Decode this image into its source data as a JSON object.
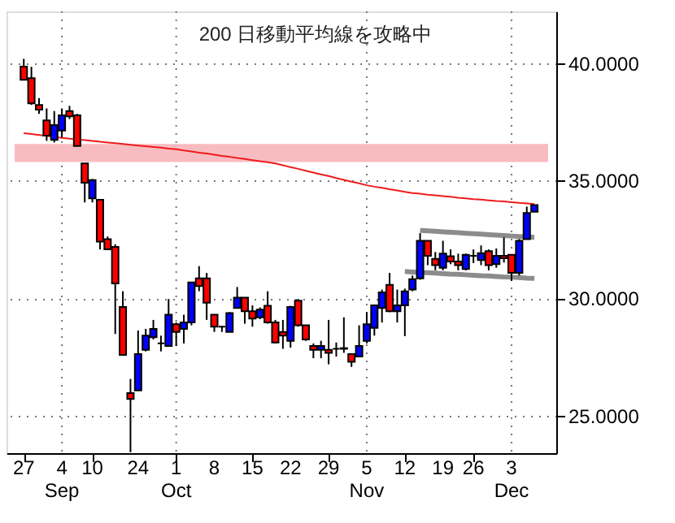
{
  "chart_data": {
    "type": "candlestick",
    "annotations": [
      "200 日移動平均線を攻略中"
    ],
    "categories": [
      "27",
      null,
      null,
      null,
      null,
      "4\nSep",
      null,
      null,
      null,
      "10",
      null,
      null,
      null,
      null,
      null,
      "24",
      null,
      null,
      null,
      null,
      "1\nOct",
      null,
      null,
      null,
      null,
      "8",
      null,
      null,
      null,
      null,
      "15",
      null,
      null,
      null,
      null,
      "22",
      null,
      null,
      null,
      null,
      "29",
      null,
      null,
      null,
      null,
      "5\nNov",
      null,
      null,
      null,
      null,
      "12",
      null,
      null,
      null,
      null,
      "19",
      null,
      null,
      null,
      "26",
      null,
      null,
      null,
      null,
      "3\nDec",
      null,
      null,
      null
    ],
    "ohlc": [
      [
        39.85,
        40.18,
        39.29,
        39.29
      ],
      [
        39.36,
        39.84,
        38.22,
        38.29
      ],
      [
        38.22,
        38.51,
        37.84,
        38.02
      ],
      [
        37.56,
        38.07,
        36.69,
        36.91
      ],
      [
        36.73,
        37.96,
        36.62,
        37.36
      ],
      [
        37.13,
        38.07,
        36.84,
        37.78
      ],
      [
        37.96,
        38.18,
        37.62,
        37.73
      ],
      [
        37.78,
        37.84,
        36.47,
        36.47
      ],
      [
        35.73,
        35.73,
        34.07,
        34.91
      ],
      [
        34.24,
        35.07,
        34.07,
        35.02
      ],
      [
        34.18,
        34.18,
        32.07,
        32.4
      ],
      [
        32.51,
        32.62,
        32.07,
        32.07
      ],
      [
        32.18,
        32.29,
        28.47,
        30.62
      ],
      [
        29.62,
        30.29,
        27.58,
        27.58
      ],
      [
        25.96,
        26.56,
        23.44,
        25.71
      ],
      [
        26.07,
        28.62,
        26.07,
        27.62
      ],
      [
        27.8,
        28.69,
        27.73,
        28.4
      ],
      [
        28.33,
        29.07,
        28.24,
        28.69
      ],
      [
        28.07,
        28.4,
        27.73,
        28.07
      ],
      [
        27.96,
        29.96,
        27.96,
        29.29
      ],
      [
        28.89,
        28.96,
        27.96,
        28.56
      ],
      [
        28.69,
        29.29,
        28.07,
        28.96
      ],
      [
        28.96,
        30.67,
        28.84,
        30.67
      ],
      [
        30.84,
        31.36,
        30.29,
        30.51
      ],
      [
        30.84,
        31.07,
        29.07,
        29.8
      ],
      [
        29.29,
        29.29,
        28.56,
        28.78
      ],
      [
        28.78,
        28.78,
        28.56,
        28.78
      ],
      [
        28.56,
        29.4,
        28.56,
        29.36
      ],
      [
        29.58,
        30.47,
        29.58,
        30.02
      ],
      [
        30.02,
        30.02,
        28.91,
        29.44
      ],
      [
        29.44,
        29.69,
        28.78,
        29.13
      ],
      [
        29.18,
        29.6,
        29.1,
        29.51
      ],
      [
        29.67,
        30.29,
        28.91,
        28.96
      ],
      [
        28.96,
        29.07,
        28.07,
        28.11
      ],
      [
        28.56,
        29.07,
        27.84,
        28.4
      ],
      [
        28.18,
        29.67,
        27.89,
        29.62
      ],
      [
        29.89,
        29.96,
        28.78,
        28.84
      ],
      [
        28.84,
        28.84,
        28.18,
        28.24
      ],
      [
        27.96,
        28.07,
        27.44,
        27.8
      ],
      [
        27.8,
        28.18,
        27.44,
        27.96
      ],
      [
        27.8,
        29.07,
        27.18,
        27.67
      ],
      [
        27.84,
        28.11,
        27.51,
        27.84
      ],
      [
        27.84,
        29.18,
        27.67,
        27.87
      ],
      [
        27.62,
        27.62,
        27.07,
        27.29
      ],
      [
        27.51,
        28.84,
        27.51,
        27.96
      ],
      [
        28.18,
        29.4,
        28.07,
        28.89
      ],
      [
        28.73,
        29.73,
        28.4,
        29.69
      ],
      [
        29.58,
        30.36,
        28.96,
        30.24
      ],
      [
        30.56,
        31.07,
        29.4,
        29.44
      ],
      [
        29.44,
        30.36,
        28.96,
        29.69
      ],
      [
        29.69,
        30.4,
        28.38,
        30.29
      ],
      [
        30.36,
        30.96,
        30.29,
        30.8
      ],
      [
        30.84,
        32.76,
        30.78,
        32.44
      ],
      [
        32.44,
        32.44,
        31.4,
        31.8
      ],
      [
        31.67,
        31.96,
        31.18,
        31.4
      ],
      [
        31.29,
        32.44,
        31.18,
        31.89
      ],
      [
        31.78,
        32.07,
        31.44,
        31.56
      ],
      [
        31.56,
        31.89,
        31.18,
        31.4
      ],
      [
        31.24,
        31.89,
        31.18,
        31.84
      ],
      [
        31.8,
        32.07,
        31.49,
        31.8
      ],
      [
        31.62,
        32.24,
        31.4,
        31.91
      ],
      [
        32.0,
        32.07,
        31.18,
        31.4
      ],
      [
        31.44,
        32.11,
        31.29,
        31.8
      ],
      [
        31.8,
        32.58,
        31.51,
        31.69
      ],
      [
        31.84,
        31.84,
        30.73,
        31.07
      ],
      [
        31.07,
        32.51,
        30.96,
        32.44
      ],
      [
        32.51,
        33.89,
        32.51,
        33.62
      ],
      [
        33.67,
        33.96,
        33.67,
        33.96
      ]
    ],
    "colors": [
      "#ff0000",
      "#ff0000",
      "#ff0000",
      "#ff0000",
      "#0000ff",
      "#0000ff",
      "#ff0000",
      "#ff0000",
      "#ff0000",
      "#0000ff",
      "#ff0000",
      "#ff0000",
      "#ff0000",
      "#ff0000",
      "#ff0000",
      "#0000ff",
      "#0000ff",
      "#0000ff",
      "#000000",
      "#0000ff",
      "#ff0000",
      "#0000ff",
      "#0000ff",
      "#ff0000",
      "#ff0000",
      "#ff0000",
      "#000000",
      "#0000ff",
      "#0000ff",
      "#ff0000",
      "#ff0000",
      "#0000ff",
      "#ff0000",
      "#ff0000",
      "#ff0000",
      "#0000ff",
      "#ff0000",
      "#ff0000",
      "#ff0000",
      "#0000ff",
      "#ff0000",
      "#000000",
      "#0000ff",
      "#ff0000",
      "#0000ff",
      "#0000ff",
      "#0000ff",
      "#0000ff",
      "#ff0000",
      "#0000ff",
      "#0000ff",
      "#0000ff",
      "#0000ff",
      "#ff0000",
      "#ff0000",
      "#0000ff",
      "#ff0000",
      "#ff0000",
      "#0000ff",
      "#000000",
      "#0000ff",
      "#ff0000",
      "#0000ff",
      "#ff0000",
      "#ff0000",
      "#0000ff",
      "#0000ff",
      "#0000ff"
    ],
    "series": [
      {
        "type": "line",
        "color": "#ee1c1c",
        "values": [
          37.02,
          36.98,
          36.94,
          36.9,
          36.86,
          36.82,
          36.78,
          36.75,
          36.72,
          36.69,
          36.65,
          36.62,
          36.59,
          36.56,
          36.52,
          36.49,
          36.46,
          36.43,
          36.4,
          36.36,
          36.33,
          36.28,
          36.24,
          36.19,
          36.15,
          36.1,
          36.05,
          36.01,
          35.96,
          35.92,
          35.87,
          35.82,
          35.78,
          35.73,
          35.65,
          35.57,
          35.5,
          35.42,
          35.34,
          35.26,
          35.19,
          35.11,
          35.03,
          34.95,
          34.88,
          34.8,
          34.74,
          34.69,
          34.63,
          34.58,
          34.52,
          34.47,
          34.44,
          34.4,
          34.37,
          34.34,
          34.31,
          34.27,
          34.24,
          34.21,
          34.19,
          34.16,
          34.13,
          34.11,
          34.08,
          34.05,
          34.03,
          34.0
        ]
      },
      {
        "type": "line",
        "color": "#8c8c8c",
        "values": [
          null,
          null,
          null,
          null,
          null,
          null,
          null,
          null,
          null,
          null,
          null,
          null,
          null,
          null,
          null,
          null,
          null,
          null,
          null,
          null,
          null,
          null,
          null,
          null,
          null,
          null,
          null,
          null,
          null,
          null,
          null,
          null,
          null,
          null,
          null,
          null,
          null,
          null,
          null,
          null,
          null,
          null,
          null,
          null,
          null,
          null,
          null,
          null,
          null,
          null,
          null,
          null,
          32.88,
          32.86,
          32.84,
          32.82,
          32.8,
          32.78,
          32.76,
          32.74,
          32.72,
          32.7,
          32.68,
          32.66,
          32.64,
          32.62,
          32.6,
          32.58
        ]
      },
      {
        "type": "line",
        "color": "#8c8c8c",
        "values": [
          null,
          null,
          null,
          null,
          null,
          null,
          null,
          null,
          null,
          null,
          null,
          null,
          null,
          null,
          null,
          null,
          null,
          null,
          null,
          null,
          null,
          null,
          null,
          null,
          null,
          null,
          null,
          null,
          null,
          null,
          null,
          null,
          null,
          null,
          null,
          null,
          null,
          null,
          null,
          null,
          null,
          null,
          null,
          null,
          null,
          null,
          null,
          null,
          null,
          null,
          31.13,
          31.11,
          31.09,
          31.08,
          31.06,
          31.04,
          31.02,
          31.01,
          30.99,
          30.97,
          30.95,
          30.94,
          30.92,
          30.9,
          30.89,
          30.87,
          30.85,
          30.84
        ]
      }
    ],
    "bands": [
      {
        "axis": "y",
        "from": 35.79,
        "to": 36.56,
        "color": "#f8bcc0"
      }
    ],
    "ylim": [
      23.4,
      42.2
    ],
    "yticks": [
      {
        "value": 25,
        "label": "25.0000"
      },
      {
        "value": 30,
        "label": "30.0000"
      },
      {
        "value": 35,
        "label": "35.0000"
      },
      {
        "value": 40,
        "label": "40.0000"
      }
    ],
    "grid": true
  }
}
